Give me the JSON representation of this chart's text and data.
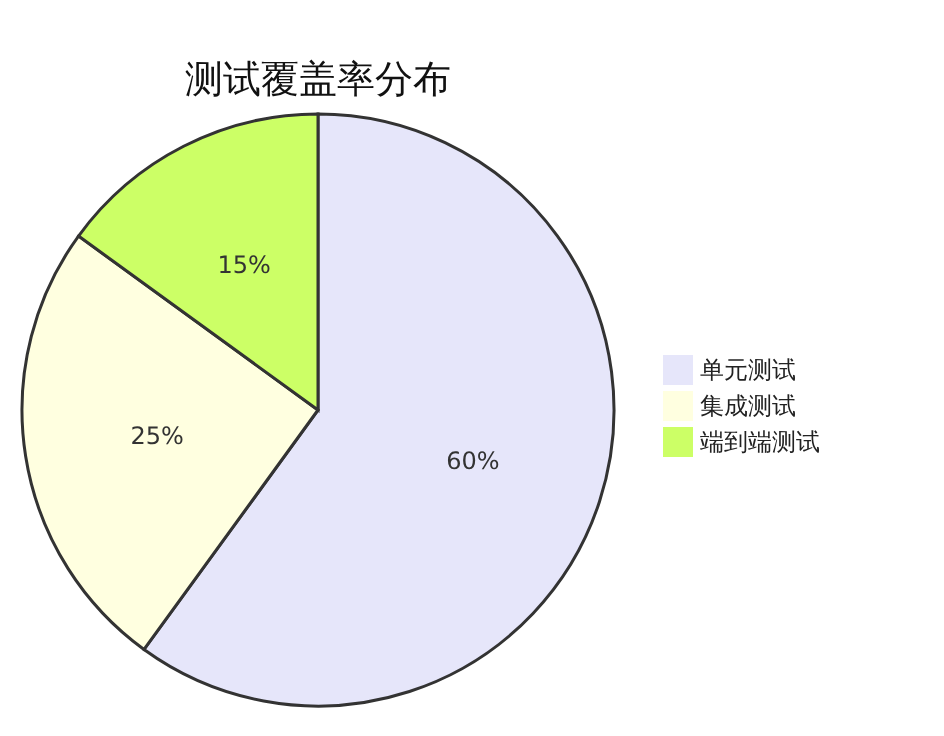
{
  "chart_data": {
    "type": "pie",
    "title": "测试覆盖率分布",
    "categories": [
      "单元测试",
      "集成测试",
      "端到端测试"
    ],
    "values": [
      60,
      25,
      15
    ],
    "colors": [
      "#e6e6fa",
      "#ffffe0",
      "#ccff66"
    ],
    "value_labels": [
      "60%",
      "25%",
      "15%"
    ],
    "legend": "right"
  }
}
